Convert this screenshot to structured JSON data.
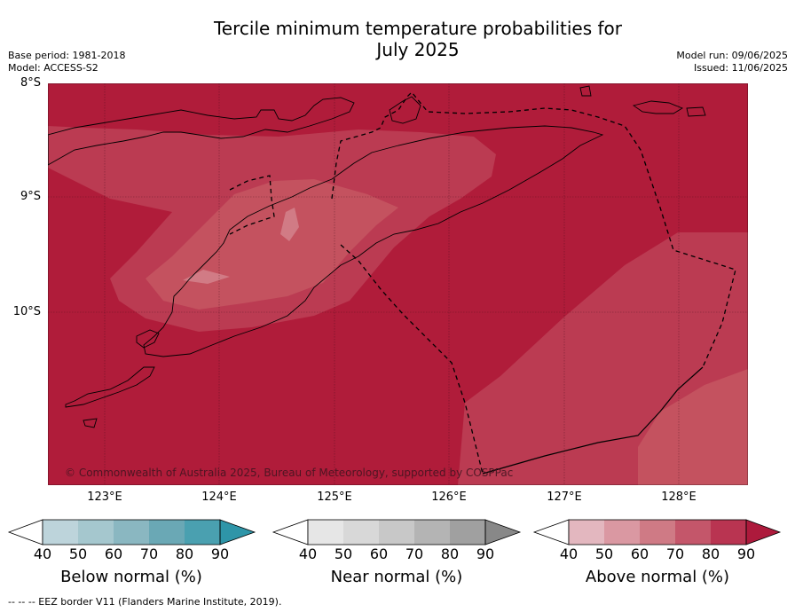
{
  "title": {
    "line1": "Tercile minimum temperature probabilities for",
    "line2": "July 2025"
  },
  "meta_left": {
    "base_period": "Base period: 1981-2018",
    "model": "Model: ACCESS-S2"
  },
  "meta_right": {
    "model_run": "Model run: 09/06/2025",
    "issued": "Issued: 11/06/2025"
  },
  "map": {
    "lat_labels": [
      "8°S",
      "9°S",
      "10°S"
    ],
    "lon_labels": [
      "123°E",
      "124°E",
      "125°E",
      "126°E",
      "127°E",
      "128°E"
    ],
    "lon_range": [
      122.5,
      128.6
    ],
    "lat_range": [
      -11.5,
      -8.0
    ],
    "copyright": "© Commonwealth of Australia 2025, Bureau of Meteorology, supported by COSPPac",
    "colors": {
      "above_90": "#b01c3a",
      "above_80": "#bb3b52",
      "above_70": "#c4525f",
      "above_60": "#d17b85"
    }
  },
  "colorbars": [
    {
      "name": "below-normal",
      "label": "Below normal (%)",
      "ticks": [
        "40",
        "50",
        "60",
        "70",
        "80",
        "90"
      ],
      "colors": [
        "#bdd4db",
        "#a5c7ce",
        "#8ab7c1",
        "#6aa8b5",
        "#4aa0b0",
        "#2e95a8"
      ]
    },
    {
      "name": "near-normal",
      "label": "Near normal (%)",
      "ticks": [
        "40",
        "50",
        "60",
        "70",
        "80",
        "90"
      ],
      "colors": [
        "#e6e6e6",
        "#d8d8d8",
        "#c8c8c8",
        "#b4b4b4",
        "#a0a0a0",
        "#888888"
      ]
    },
    {
      "name": "above-normal",
      "label": "Above normal (%)",
      "ticks": [
        "40",
        "50",
        "60",
        "70",
        "80",
        "90"
      ],
      "colors": [
        "#e3b7bf",
        "#da98a2",
        "#cf7a85",
        "#c4566a",
        "#b93451",
        "#ad1a3c"
      ]
    }
  ],
  "footnote": "--  --  -- EEZ border V11 (Flanders Marine Institute, 2019)."
}
